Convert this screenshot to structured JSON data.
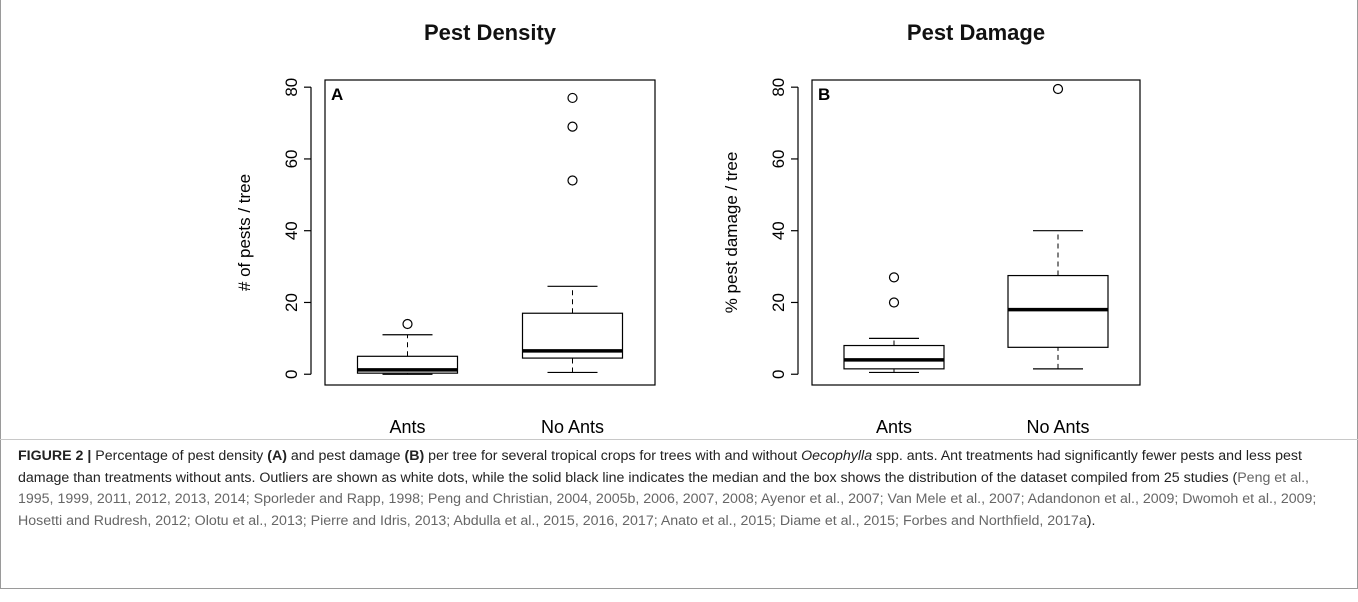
{
  "chart_data": [
    {
      "type": "box",
      "title": "Pest Density",
      "panel_label": "A",
      "ylabel": "# of pests / tree",
      "categories": [
        "Ants",
        "No Ants"
      ],
      "boxes": [
        {
          "min": 0,
          "q1": 0.3,
          "median": 1.2,
          "q3": 5,
          "max": 11,
          "outliers": [
            14
          ]
        },
        {
          "min": 0.5,
          "q1": 4.5,
          "median": 6.5,
          "q3": 17,
          "max": 24.5,
          "outliers": [
            54,
            69,
            77
          ]
        }
      ],
      "ylim": [
        -3,
        82
      ],
      "yticks": [
        0,
        20,
        40,
        60,
        80
      ]
    },
    {
      "type": "box",
      "title": "Pest Damage",
      "panel_label": "B",
      "ylabel": "% pest damage / tree",
      "categories": [
        "Ants",
        "No Ants"
      ],
      "boxes": [
        {
          "min": 0.5,
          "q1": 1.5,
          "median": 4,
          "q3": 8,
          "max": 10,
          "outliers": [
            20,
            27
          ]
        },
        {
          "min": 1.5,
          "q1": 7.5,
          "median": 18,
          "q3": 27.5,
          "max": 40,
          "outliers": [
            79.5
          ]
        }
      ],
      "ylim": [
        -3,
        82
      ],
      "yticks": [
        0,
        20,
        40,
        60,
        80
      ]
    }
  ],
  "caption": [
    "FIGURE 2 |",
    " Percentage of pest density ",
    "(A)",
    " and pest damage ",
    "(B)",
    " per tree for several tropical crops for trees with and without ",
    "Oecophylla",
    " spp. ants. Ant treatments had significantly fewer pests and less pest damage than treatments without ants. Outliers are shown as white dots, while the solid black line indicates the median and the box shows the distribution of the dataset compiled from 25 studies (",
    "Peng et al., 1995, 1999, 2011, 2012, 2013, 2014; Sporleder and Rapp, 1998; Peng and Christian, 2004, 2005b, 2006, 2007, 2008; Ayenor et al., 2007; Van Mele et al., 2007; Adandonon et al., 2009; Dwomoh et al., 2009; Hosetti and Rudresh, 2012; Olotu et al., 2013; Pierre and Idris, 2013; Abdulla et al., 2015, 2016, 2017; Anato et al., 2015; Diame et al., 2015; Forbes and Northfield, 2017a",
    ")."
  ]
}
